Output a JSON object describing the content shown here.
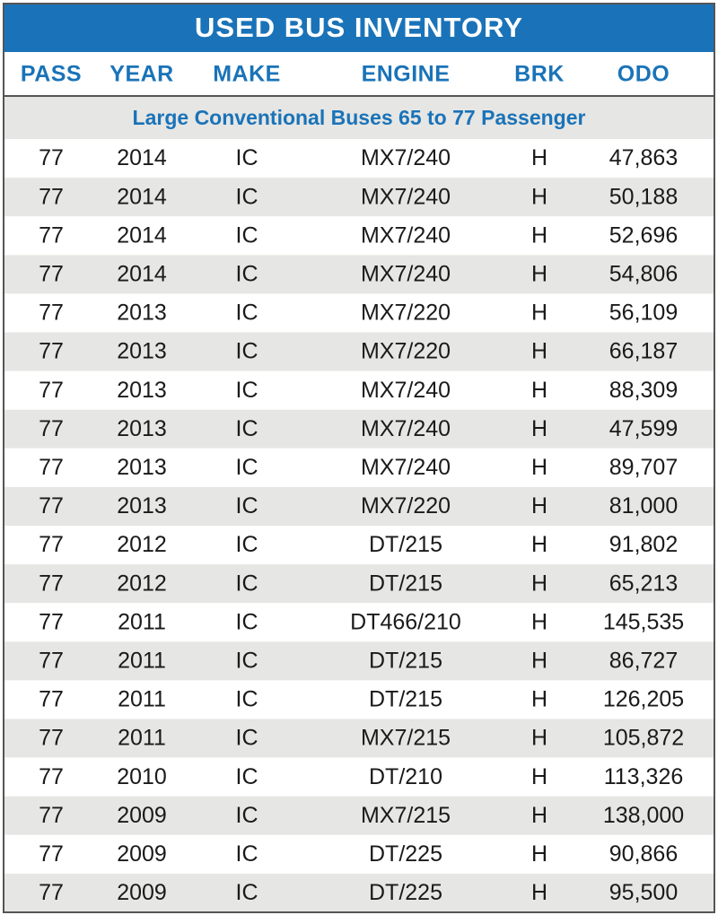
{
  "header": {
    "title": "USED BUS INVENTORY"
  },
  "table": {
    "columns": [
      "PASS",
      "YEAR",
      "MAKE",
      "ENGINE",
      "BRK",
      "ODO"
    ],
    "section": "Large Conventional Buses 65 to 77 Passenger",
    "rows": [
      [
        "77",
        "2014",
        "IC",
        "MX7/240",
        "H",
        "47,863"
      ],
      [
        "77",
        "2014",
        "IC",
        "MX7/240",
        "H",
        "50,188"
      ],
      [
        "77",
        "2014",
        "IC",
        "MX7/240",
        "H",
        "52,696"
      ],
      [
        "77",
        "2014",
        "IC",
        "MX7/240",
        "H",
        "54,806"
      ],
      [
        "77",
        "2013",
        "IC",
        "MX7/220",
        "H",
        "56,109"
      ],
      [
        "77",
        "2013",
        "IC",
        "MX7/220",
        "H",
        "66,187"
      ],
      [
        "77",
        "2013",
        "IC",
        "MX7/240",
        "H",
        "88,309"
      ],
      [
        "77",
        "2013",
        "IC",
        "MX7/240",
        "H",
        "47,599"
      ],
      [
        "77",
        "2013",
        "IC",
        "MX7/240",
        "H",
        "89,707"
      ],
      [
        "77",
        "2013",
        "IC",
        "MX7/220",
        "H",
        "81,000"
      ],
      [
        "77",
        "2012",
        "IC",
        "DT/215",
        "H",
        "91,802"
      ],
      [
        "77",
        "2012",
        "IC",
        "DT/215",
        "H",
        "65,213"
      ],
      [
        "77",
        "2011",
        "IC",
        "DT466/210",
        "H",
        "145,535"
      ],
      [
        "77",
        "2011",
        "IC",
        "DT/215",
        "H",
        "86,727"
      ],
      [
        "77",
        "2011",
        "IC",
        "DT/215",
        "H",
        "126,205"
      ],
      [
        "77",
        "2011",
        "IC",
        "MX7/215",
        "H",
        "105,872"
      ],
      [
        "77",
        "2010",
        "IC",
        "DT/210",
        "H",
        "113,326"
      ],
      [
        "77",
        "2009",
        "IC",
        "MX7/215",
        "H",
        "138,000"
      ],
      [
        "77",
        "2009",
        "IC",
        "DT/225",
        "H",
        "90,866"
      ],
      [
        "77",
        "2009",
        "IC",
        "DT/225",
        "H",
        "95,500"
      ]
    ]
  }
}
